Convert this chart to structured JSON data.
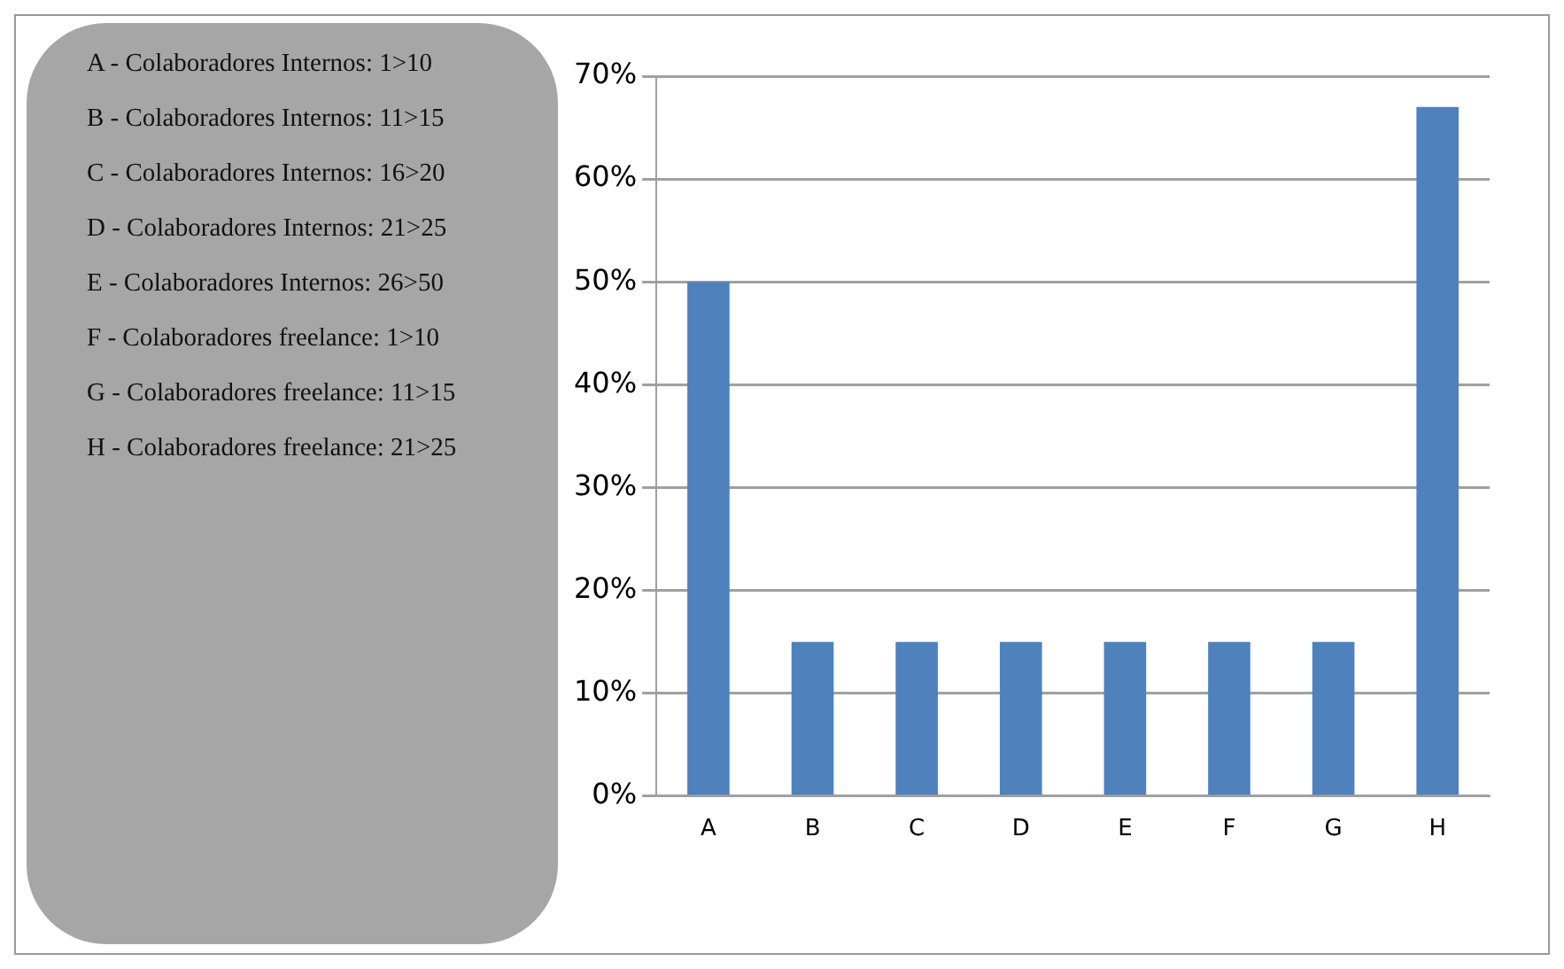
{
  "chart_data": {
    "type": "bar",
    "categories": [
      "A",
      "B",
      "C",
      "D",
      "E",
      "F",
      "G",
      "H"
    ],
    "values": [
      50,
      15,
      15,
      15,
      15,
      15,
      15,
      67
    ],
    "color": "#4f81bd",
    "ylim": [
      0,
      70
    ],
    "yticks": [
      {
        "value": 0,
        "label": "0%"
      },
      {
        "value": 10,
        "label": "10%"
      },
      {
        "value": 20,
        "label": "20%"
      },
      {
        "value": 30,
        "label": "30%"
      },
      {
        "value": 40,
        "label": "40%"
      },
      {
        "value": 50,
        "label": "50%"
      },
      {
        "value": 60,
        "label": "60%"
      },
      {
        "value": 70,
        "label": "70%"
      }
    ],
    "grid": "y",
    "annotations": [
      "A - Colaboradores Internos: 1>10",
      "B - Colaboradores Internos: 11>15",
      "C - Colaboradores Internos: 16>20",
      "D - Colaboradores Internos: 21>25",
      "E - Colaboradores Internos: 26>50",
      "F - Colaboradores freelance: 1>10",
      "G - Colaboradores freelance: 11>15",
      "H - Colaboradores freelance: 21>25"
    ]
  }
}
